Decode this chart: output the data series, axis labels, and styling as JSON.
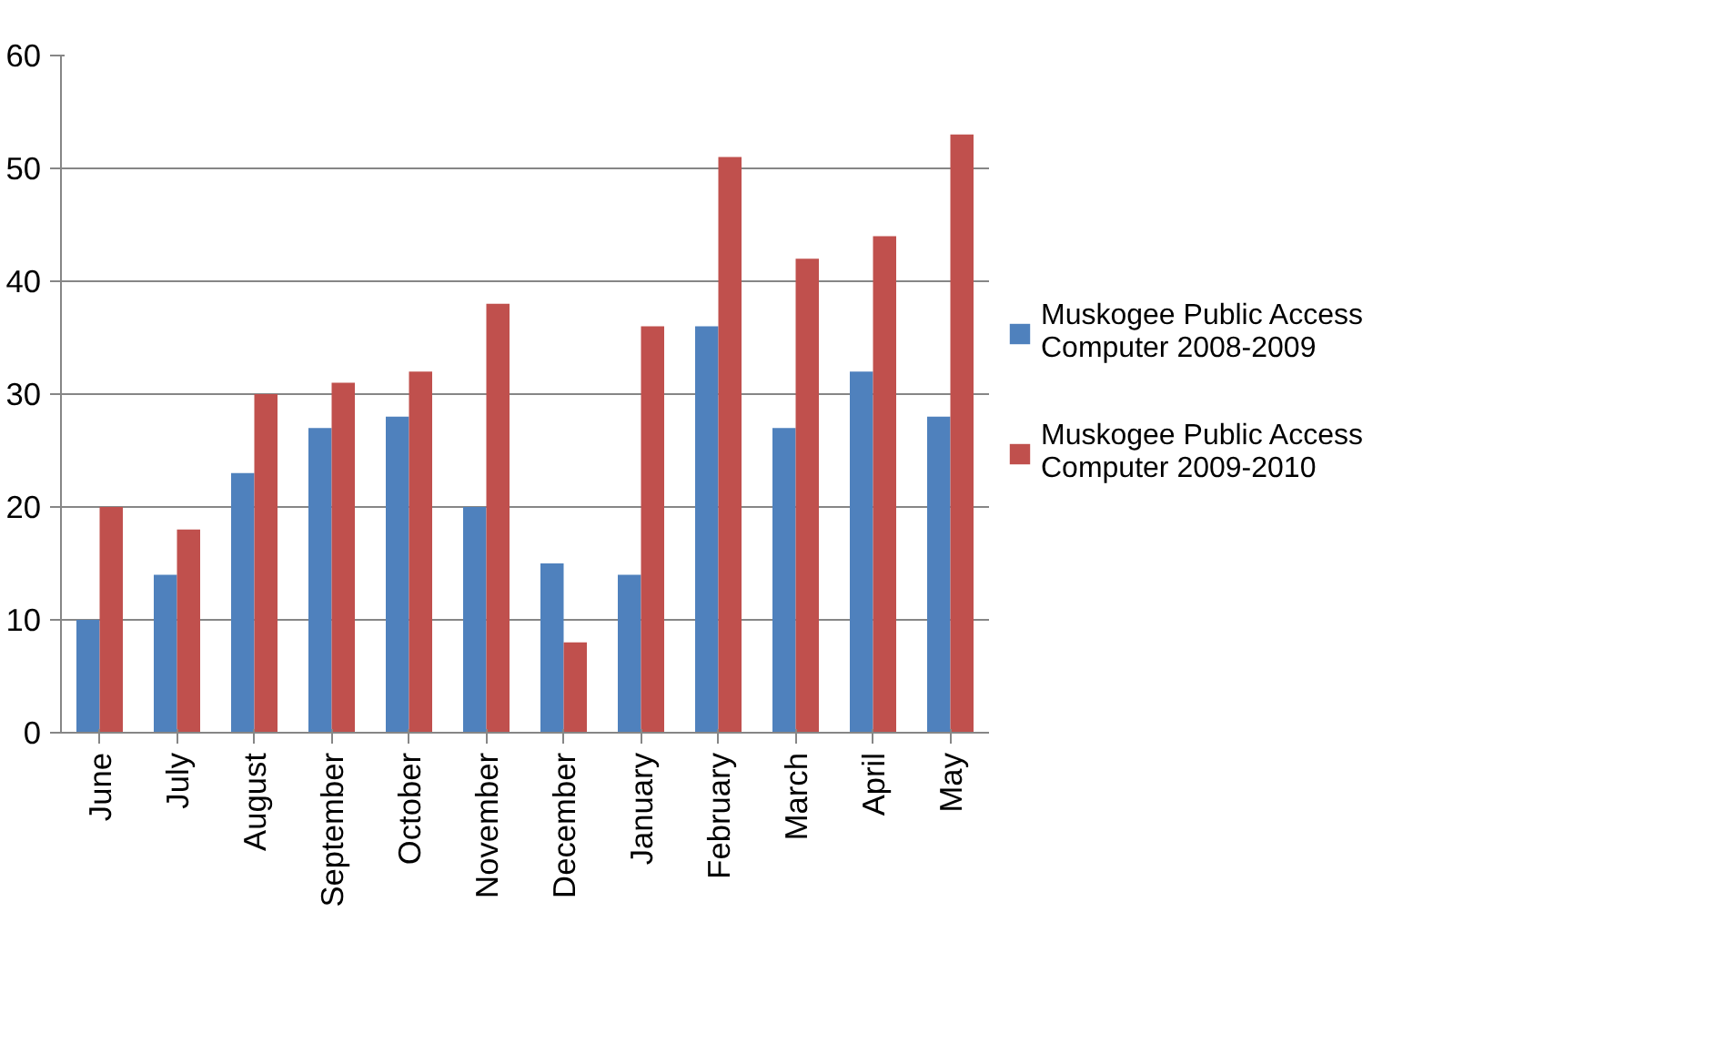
{
  "chart_data": {
    "type": "bar",
    "categories": [
      "June",
      "July",
      "August",
      "September",
      "October",
      "November",
      "December",
      "January",
      "February",
      "March",
      "April",
      "May"
    ],
    "series": [
      {
        "name": "Muskogee Public Access Computer 2008-2009",
        "color": "#4f81bd",
        "values": [
          10,
          14,
          23,
          27,
          28,
          20,
          15,
          14,
          36,
          27,
          32,
          28
        ]
      },
      {
        "name": "Muskogee Public Access Computer 2009-2010",
        "color": "#c0504d",
        "values": [
          20,
          18,
          30,
          31,
          32,
          38,
          8,
          36,
          51,
          42,
          44,
          53
        ]
      }
    ],
    "ylim": [
      0,
      60
    ],
    "yticks": [
      0,
      10,
      20,
      30,
      40,
      50,
      60
    ],
    "grid": "y",
    "legend": "right"
  }
}
